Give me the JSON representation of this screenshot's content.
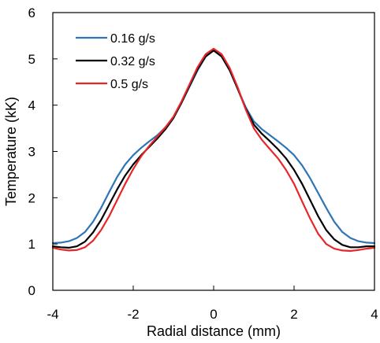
{
  "chart_data": {
    "type": "line",
    "title": "",
    "xlabel": "Radial distance (mm)",
    "ylabel": "Temperature (kK)",
    "xlim": [
      -4,
      4
    ],
    "ylim": [
      0,
      6
    ],
    "xticks": [
      -4,
      -2,
      0,
      2,
      4
    ],
    "yticks": [
      0,
      1,
      2,
      3,
      4,
      5,
      6
    ],
    "grid": false,
    "legend_position": "top-left",
    "series": [
      {
        "name": "0.16 g/s",
        "color": "#2E75B6",
        "x": [
          -4,
          -3.8,
          -3.6,
          -3.4,
          -3.2,
          -3.0,
          -2.8,
          -2.6,
          -2.4,
          -2.2,
          -2.0,
          -1.8,
          -1.6,
          -1.4,
          -1.2,
          -1.0,
          -0.8,
          -0.6,
          -0.4,
          -0.2,
          0,
          0.2,
          0.4,
          0.6,
          0.8,
          1.0,
          1.2,
          1.4,
          1.6,
          1.8,
          2.0,
          2.2,
          2.4,
          2.6,
          2.8,
          3.0,
          3.2,
          3.4,
          3.6,
          3.8,
          4.0
        ],
        "y": [
          1.02,
          1.03,
          1.06,
          1.13,
          1.26,
          1.48,
          1.78,
          2.12,
          2.45,
          2.72,
          2.92,
          3.08,
          3.22,
          3.35,
          3.52,
          3.75,
          4.05,
          4.4,
          4.75,
          5.05,
          5.2,
          5.05,
          4.75,
          4.35,
          3.95,
          3.65,
          3.48,
          3.35,
          3.22,
          3.08,
          2.92,
          2.7,
          2.42,
          2.1,
          1.78,
          1.48,
          1.26,
          1.13,
          1.06,
          1.03,
          1.02
        ]
      },
      {
        "name": "0.32 g/s",
        "color": "#000000",
        "x": [
          -4,
          -3.8,
          -3.6,
          -3.4,
          -3.2,
          -3.0,
          -2.8,
          -2.6,
          -2.4,
          -2.2,
          -2.0,
          -1.8,
          -1.6,
          -1.4,
          -1.2,
          -1.0,
          -0.8,
          -0.6,
          -0.4,
          -0.2,
          0,
          0.2,
          0.4,
          0.6,
          0.8,
          1.0,
          1.2,
          1.4,
          1.6,
          1.8,
          2.0,
          2.2,
          2.4,
          2.6,
          2.8,
          3.0,
          3.2,
          3.4,
          3.6,
          3.8,
          4.0
        ],
        "y": [
          0.95,
          0.93,
          0.92,
          0.95,
          1.05,
          1.25,
          1.52,
          1.85,
          2.18,
          2.48,
          2.72,
          2.92,
          3.1,
          3.28,
          3.48,
          3.72,
          4.05,
          4.42,
          4.78,
          5.05,
          5.18,
          5.05,
          4.75,
          4.35,
          3.92,
          3.58,
          3.38,
          3.22,
          3.05,
          2.85,
          2.6,
          2.3,
          1.95,
          1.6,
          1.3,
          1.1,
          0.98,
          0.93,
          0.93,
          0.95,
          0.95
        ]
      },
      {
        "name": "0.5 g/s",
        "color": "#E8262A",
        "x": [
          -4,
          -3.8,
          -3.6,
          -3.4,
          -3.2,
          -3.0,
          -2.8,
          -2.6,
          -2.4,
          -2.2,
          -2.0,
          -1.8,
          -1.6,
          -1.4,
          -1.2,
          -1.0,
          -0.8,
          -0.6,
          -0.4,
          -0.2,
          0,
          0.2,
          0.4,
          0.6,
          0.8,
          1.0,
          1.2,
          1.4,
          1.6,
          1.8,
          2.0,
          2.2,
          2.4,
          2.6,
          2.8,
          3.0,
          3.2,
          3.4,
          3.6,
          3.8,
          4.0
        ],
        "y": [
          0.92,
          0.88,
          0.86,
          0.87,
          0.93,
          1.07,
          1.3,
          1.6,
          1.95,
          2.3,
          2.62,
          2.9,
          3.12,
          3.32,
          3.52,
          3.75,
          4.08,
          4.45,
          4.82,
          5.1,
          5.22,
          5.1,
          4.8,
          4.38,
          3.9,
          3.5,
          3.25,
          3.05,
          2.85,
          2.6,
          2.3,
          1.92,
          1.55,
          1.22,
          1.0,
          0.9,
          0.86,
          0.85,
          0.87,
          0.9,
          0.92
        ]
      }
    ]
  }
}
